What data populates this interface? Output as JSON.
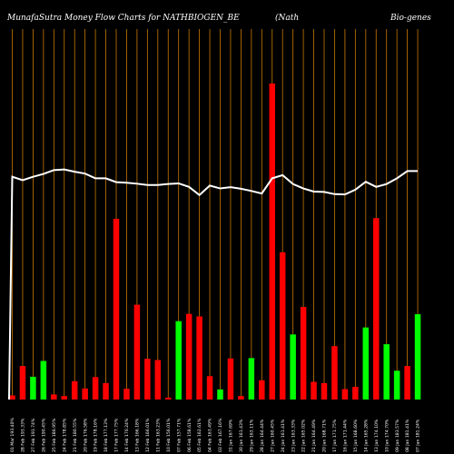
{
  "chart_data": {
    "type": "bar",
    "title_left": "MunafaSutra  Money Flow  Charts for NATHBIOGEN_BE",
    "title_mid": "(Nath",
    "title_right": "Bio-genes",
    "colors": {
      "background": "#000000",
      "up": "#00ff00",
      "down": "#ff0000",
      "grid": "#c87800",
      "line": "#ffffff"
    },
    "x_tick_labels": [
      "01 Mar 193.40%",
      "28 Feb 193.33%",
      "27 Feb 191.74%",
      "26 Feb 190.45%",
      "25 Feb 186.95%",
      "24 Feb 178.85%",
      "21 Feb 180.55%",
      "20 Feb 176.58%",
      "19 Feb 178.16%",
      "18 Feb 177.13%",
      "17 Feb 177.75%",
      "14 Feb 170.24%",
      "13 Feb 166.18%",
      "12 Feb 166.01%",
      "11 Feb 163.23%",
      "10 Feb 156.01%",
      "07 Feb 157.71%",
      "06 Feb 158.61%",
      "05 Feb 162.61%",
      "04 Feb 163.49%",
      "03 Feb 167.16%",
      "31 Jan 167.69%",
      "30 Jan 161.43%",
      "29 Jan 163.11%",
      "28 Jan 164.44%",
      "27 Jan 160.45%",
      "24 Jan 161.41%",
      "23 Jan 163.33%",
      "22 Jan 165.02%",
      "21 Jan 164.49%",
      "20 Jan 168.71%",
      "17 Jan 171.75%",
      "16 Jan 171.44%",
      "15 Jan 168.60%",
      "14 Jan 165.28%",
      "13 Jan 174.10%",
      "10 Jan 174.70%",
      "09 Jan 183.57%",
      "08 Jan 181.41%",
      "07 Jan 181.24%"
    ],
    "bar_colors": [
      "red",
      "red",
      "green",
      "green",
      "red",
      "red",
      "red",
      "red",
      "red",
      "red",
      "red",
      "red",
      "red",
      "red",
      "red",
      "red",
      "green",
      "red",
      "red",
      "red",
      "green",
      "red",
      "red",
      "green",
      "red",
      "red",
      "red",
      "green",
      "red",
      "red",
      "red",
      "red",
      "red",
      "red",
      "green",
      "red",
      "green",
      "green",
      "red",
      "green"
    ],
    "bar_values": [
      1.3,
      10.6,
      7.2,
      12.2,
      1.6,
      1.1,
      5.8,
      3.5,
      7.1,
      5.2,
      57.2,
      3.4,
      30.0,
      12.9,
      12.5,
      0.6,
      24.8,
      27.1,
      26.3,
      7.4,
      3.2,
      13.0,
      1.1,
      13.1,
      6.1,
      100.0,
      46.6,
      20.6,
      29.3,
      5.6,
      5.2,
      16.9,
      3.3,
      4.0,
      22.8,
      57.4,
      17.5,
      9.1,
      10.6,
      27.0
    ],
    "line_values": [
      70.5,
      69.4,
      70.5,
      71.4,
      72.6,
      72.8,
      72.1,
      71.5,
      70.0,
      70.0,
      68.8,
      68.6,
      68.3,
      67.9,
      67.9,
      68.2,
      68.4,
      67.3,
      64.7,
      67.7,
      66.8,
      67.2,
      66.7,
      66.0,
      65.2,
      70.0,
      71.0,
      68.2,
      66.8,
      65.8,
      65.7,
      65.0,
      64.9,
      66.4,
      68.9,
      67.3,
      68.2,
      70.0,
      72.3,
      72.3
    ],
    "ylim": [
      0,
      100
    ]
  }
}
